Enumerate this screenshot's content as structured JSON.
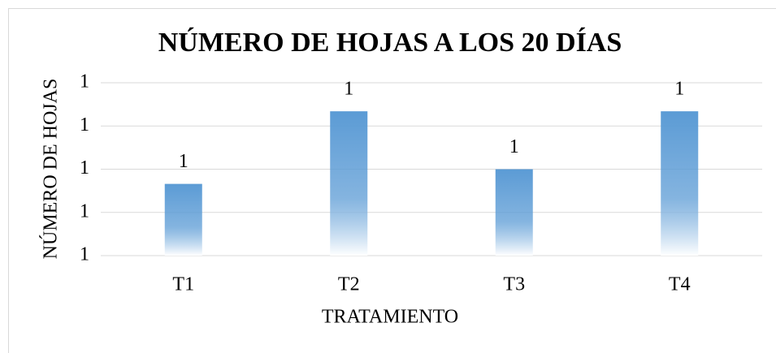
{
  "chart_data": {
    "type": "bar",
    "title": "NÚMERO DE HOJAS A LOS 20 DÍAS",
    "x_label": "TRATAMIENTO",
    "y_label": "NÚMERO DE HOJAS",
    "categories": [
      "T1",
      "T2",
      "T3",
      "T4"
    ],
    "values": [
      1.083,
      1.167,
      1.1,
      1.167
    ],
    "value_labels": [
      "1",
      "1",
      "1",
      "1"
    ],
    "color": "#5b9bd5",
    "ylim": [
      1,
      1.2
    ],
    "yticks": [
      {
        "value": 1,
        "label": "1"
      },
      {
        "value": 1.05,
        "label": "1"
      },
      {
        "value": 1.1,
        "label": "1"
      },
      {
        "value": 1.15,
        "label": "1"
      },
      {
        "value": 1.2,
        "label": "1"
      }
    ],
    "grid": true
  }
}
